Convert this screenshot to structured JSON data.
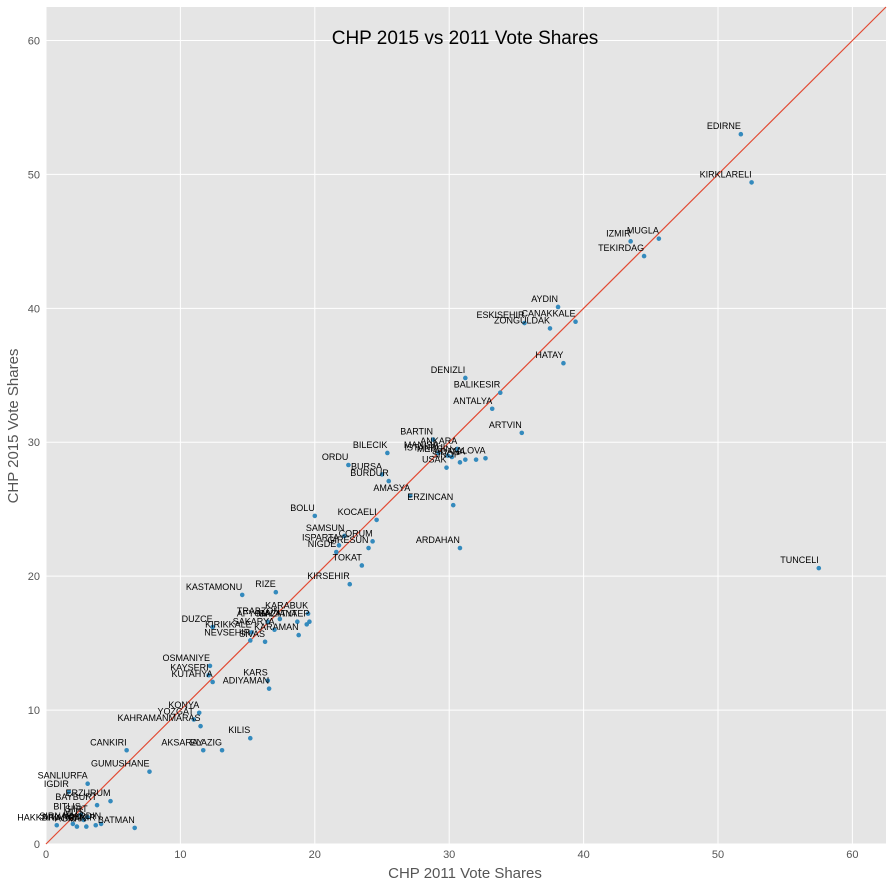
{
  "chart_data": {
    "type": "scatter",
    "title": "CHP 2015 vs 2011 Vote Shares",
    "xlabel": "CHP 2011 Vote Shares",
    "ylabel": "CHP 2015 Vote Shares",
    "xlim": [
      0,
      62.5
    ],
    "ylim": [
      0,
      62.5
    ],
    "xticks": [
      0,
      10,
      20,
      30,
      40,
      50,
      60
    ],
    "yticks": [
      0,
      10,
      20,
      30,
      40,
      50,
      60
    ],
    "grid": true,
    "colors": {
      "background": "#e5e5e5",
      "grid": "#ffffff",
      "point": "#348abd",
      "line": "#e24a33"
    },
    "reference_line": {
      "from": [
        0,
        0
      ],
      "to": [
        62.5,
        62.5
      ]
    },
    "points": [
      {
        "label": "EDIRNE",
        "x": 51.7,
        "y": 53.0
      },
      {
        "label": "KIRKLARELI",
        "x": 52.5,
        "y": 49.4
      },
      {
        "label": "MUGLA",
        "x": 45.6,
        "y": 45.2
      },
      {
        "label": "IZMIR",
        "x": 43.5,
        "y": 45.0
      },
      {
        "label": "TEKIRDAG",
        "x": 44.5,
        "y": 43.9
      },
      {
        "label": "AYDIN",
        "x": 38.1,
        "y": 40.1
      },
      {
        "label": "CANAKKALE",
        "x": 39.4,
        "y": 39.0
      },
      {
        "label": "ESKISEHIR",
        "x": 35.6,
        "y": 38.9
      },
      {
        "label": "ZONGULDAK",
        "x": 37.5,
        "y": 38.5
      },
      {
        "label": "HATAY",
        "x": 38.5,
        "y": 35.9
      },
      {
        "label": "DENIZLI",
        "x": 31.2,
        "y": 34.8
      },
      {
        "label": "BALIKESIR",
        "x": 33.8,
        "y": 33.7
      },
      {
        "label": "ANTALYA",
        "x": 33.2,
        "y": 32.5
      },
      {
        "label": "ARTVIN",
        "x": 35.4,
        "y": 30.7
      },
      {
        "label": "BARTIN",
        "x": 28.8,
        "y": 30.2
      },
      {
        "label": "ANKARA",
        "x": 30.6,
        "y": 29.5
      },
      {
        "label": "MANISA",
        "x": 29.2,
        "y": 29.2
      },
      {
        "label": "ISTANBUL",
        "x": 29.9,
        "y": 29.0
      },
      {
        "label": "MERSIN",
        "x": 30.2,
        "y": 28.9
      },
      {
        "label": "ADANA",
        "x": 31.2,
        "y": 28.7
      },
      {
        "label": "KIRIKKALE",
        "x": 32.0,
        "y": 28.7
      },
      {
        "label": "BILECIK",
        "x": 25.4,
        "y": 29.2
      },
      {
        "label": "ORDU",
        "x": 22.5,
        "y": 28.3
      },
      {
        "label": "SINOP",
        "x": 30.8,
        "y": 28.5
      },
      {
        "label": "USAK",
        "x": 29.8,
        "y": 28.1
      },
      {
        "label": "YALOVA",
        "x": 32.7,
        "y": 28.8
      },
      {
        "label": "BURSA",
        "x": 25.0,
        "y": 27.6
      },
      {
        "label": "BURDUR",
        "x": 25.5,
        "y": 27.1
      },
      {
        "label": "AMASYA",
        "x": 27.1,
        "y": 26.0
      },
      {
        "label": "ERZINCAN",
        "x": 30.3,
        "y": 25.3
      },
      {
        "label": "BOLU",
        "x": 20.0,
        "y": 24.5
      },
      {
        "label": "KOCAELI",
        "x": 24.6,
        "y": 24.2
      },
      {
        "label": "SAMSUN",
        "x": 22.2,
        "y": 23.0
      },
      {
        "label": "CORUM",
        "x": 24.3,
        "y": 22.6
      },
      {
        "label": "ISPARTA",
        "x": 21.8,
        "y": 22.3
      },
      {
        "label": "GIRESUN",
        "x": 24.0,
        "y": 22.1
      },
      {
        "label": "ARDAHAN",
        "x": 30.8,
        "y": 22.1
      },
      {
        "label": "NIGDE",
        "x": 21.6,
        "y": 21.8
      },
      {
        "label": "TOKAT",
        "x": 23.5,
        "y": 20.8
      },
      {
        "label": "TUNCELI",
        "x": 57.5,
        "y": 20.6
      },
      {
        "label": "KIRSEHIR",
        "x": 22.6,
        "y": 19.4
      },
      {
        "label": "KASTAMONU",
        "x": 14.6,
        "y": 18.6
      },
      {
        "label": "RIZE",
        "x": 17.1,
        "y": 18.8
      },
      {
        "label": "KARABUK",
        "x": 19.5,
        "y": 17.2
      },
      {
        "label": "TRABZON",
        "x": 17.4,
        "y": 16.8
      },
      {
        "label": "MALATYA",
        "x": 18.7,
        "y": 16.6
      },
      {
        "label": "AFYON",
        "x": 16.5,
        "y": 16.6
      },
      {
        "label": "KONYA_2",
        "x": 19.4,
        "y": 16.4
      },
      {
        "label": "SAKARYA",
        "x": 17.0,
        "y": 16.0
      },
      {
        "label": "GAZIANTEP",
        "x": 19.6,
        "y": 16.6
      },
      {
        "label": "DUZCE",
        "x": 12.4,
        "y": 16.2
      },
      {
        "label": "KIRIKKALE",
        "x": 15.3,
        "y": 15.8
      },
      {
        "label": "NEVSEHIR",
        "x": 15.2,
        "y": 15.2
      },
      {
        "label": "KARAMAN",
        "x": 18.8,
        "y": 15.6
      },
      {
        "label": "SIVAS",
        "x": 16.3,
        "y": 15.1
      },
      {
        "label": "OSMANIYE",
        "x": 12.2,
        "y": 13.3
      },
      {
        "label": "KAYSERI",
        "x": 12.1,
        "y": 12.6
      },
      {
        "label": "KUTAHYA",
        "x": 12.4,
        "y": 12.1
      },
      {
        "label": "KARS",
        "x": 16.5,
        "y": 12.2
      },
      {
        "label": "ADIYAMAN",
        "x": 16.6,
        "y": 11.6
      },
      {
        "label": "KONYA",
        "x": 11.4,
        "y": 9.8
      },
      {
        "label": "YOZGAT",
        "x": 11.0,
        "y": 9.3
      },
      {
        "label": "KAHRAMANMARAS",
        "x": 11.5,
        "y": 8.8
      },
      {
        "label": "KILIS",
        "x": 15.2,
        "y": 7.9
      },
      {
        "label": "AKSARAY",
        "x": 11.7,
        "y": 7.0
      },
      {
        "label": "ELAZIG",
        "x": 13.1,
        "y": 7.0
      },
      {
        "label": "CANKIRI",
        "x": 6.0,
        "y": 7.0
      },
      {
        "label": "GUMUSHANE",
        "x": 7.7,
        "y": 5.4
      },
      {
        "label": "SANLIURFA",
        "x": 3.1,
        "y": 4.5
      },
      {
        "label": "IGDIR",
        "x": 1.7,
        "y": 3.9
      },
      {
        "label": "ERZURUM",
        "x": 4.8,
        "y": 3.2
      },
      {
        "label": "BAYBURT",
        "x": 3.8,
        "y": 2.9
      },
      {
        "label": "BITLIS",
        "x": 2.6,
        "y": 2.2
      },
      {
        "label": "SIIRT",
        "x": 3.1,
        "y": 2.0
      },
      {
        "label": "MUS",
        "x": 2.8,
        "y": 1.8
      },
      {
        "label": "HAKKARI",
        "x": 0.8,
        "y": 1.4
      },
      {
        "label": "SIRNAK",
        "x": 2.0,
        "y": 1.5
      },
      {
        "label": "AGRI",
        "x": 2.3,
        "y": 1.3
      },
      {
        "label": "VAN",
        "x": 3.0,
        "y": 1.3
      },
      {
        "label": "DIYARBAKIR",
        "x": 3.7,
        "y": 1.4
      },
      {
        "label": "MARDIN",
        "x": 4.1,
        "y": 1.5
      },
      {
        "label": "BATMAN",
        "x": 6.6,
        "y": 1.2
      }
    ],
    "labels": [
      {
        "text": "EDIRNE",
        "x": 51.7,
        "y": 53.0
      },
      {
        "text": "KIRKLARELI",
        "x": 52.5,
        "y": 49.4
      },
      {
        "text": "MUGLA",
        "x": 45.6,
        "y": 45.2
      },
      {
        "text": "IZMIR",
        "x": 43.5,
        "y": 45.0
      },
      {
        "text": "TEKIRDAG",
        "x": 44.5,
        "y": 43.9
      },
      {
        "text": "AYDIN",
        "x": 38.1,
        "y": 40.1
      },
      {
        "text": "CANAKKALE",
        "x": 39.4,
        "y": 39.0
      },
      {
        "text": "ESKISEHIR",
        "x": 35.6,
        "y": 38.9
      },
      {
        "text": "ZONGULDAK",
        "x": 37.5,
        "y": 38.5
      },
      {
        "text": "HATAY",
        "x": 38.5,
        "y": 35.9
      },
      {
        "text": "DENIZLI",
        "x": 31.2,
        "y": 34.8
      },
      {
        "text": "BALIKESIR",
        "x": 33.8,
        "y": 33.7
      },
      {
        "text": "ANTALYA",
        "x": 33.2,
        "y": 32.5
      },
      {
        "text": "ARTVIN",
        "x": 35.4,
        "y": 30.7
      },
      {
        "text": "BARTIN",
        "x": 28.8,
        "y": 30.2
      },
      {
        "text": "ANKARA",
        "x": 30.6,
        "y": 29.5
      },
      {
        "text": "MANISA",
        "x": 29.2,
        "y": 29.2
      },
      {
        "text": "ISTANBUL",
        "x": 29.9,
        "y": 29.0
      },
      {
        "text": "MERSIN",
        "x": 30.2,
        "y": 28.9
      },
      {
        "text": "ADANA",
        "x": 31.2,
        "y": 28.7
      },
      {
        "text": "YALOVA",
        "x": 32.7,
        "y": 28.8
      },
      {
        "text": "BILECIK",
        "x": 25.4,
        "y": 29.2
      },
      {
        "text": "ORDU",
        "x": 22.5,
        "y": 28.3
      },
      {
        "text": "SINOP",
        "x": 30.8,
        "y": 28.5
      },
      {
        "text": "USAK",
        "x": 29.8,
        "y": 28.1
      },
      {
        "text": "BURSA",
        "x": 25.0,
        "y": 27.6
      },
      {
        "text": "BURDUR",
        "x": 25.5,
        "y": 27.1
      },
      {
        "text": "AMASYA",
        "x": 27.1,
        "y": 26.0
      },
      {
        "text": "ERZINCAN",
        "x": 30.3,
        "y": 25.3
      },
      {
        "text": "BOLU",
        "x": 20.0,
        "y": 24.5
      },
      {
        "text": "KOCAELI",
        "x": 24.6,
        "y": 24.2
      },
      {
        "text": "SAMSUN",
        "x": 22.2,
        "y": 23.0
      },
      {
        "text": "CORUM",
        "x": 24.3,
        "y": 22.6
      },
      {
        "text": "ISPARTA",
        "x": 21.8,
        "y": 22.3
      },
      {
        "text": "GIRESUN",
        "x": 24.0,
        "y": 22.1
      },
      {
        "text": "ARDAHAN",
        "x": 30.8,
        "y": 22.1
      },
      {
        "text": "NIGDE",
        "x": 21.6,
        "y": 21.8
      },
      {
        "text": "TOKAT",
        "x": 23.5,
        "y": 20.8
      },
      {
        "text": "TUNCELI",
        "x": 57.5,
        "y": 20.6
      },
      {
        "text": "KIRSEHIR",
        "x": 22.6,
        "y": 19.4
      },
      {
        "text": "KASTAMONU",
        "x": 14.6,
        "y": 18.6
      },
      {
        "text": "RIZE",
        "x": 17.1,
        "y": 18.8
      },
      {
        "text": "KARABUK",
        "x": 19.5,
        "y": 17.2
      },
      {
        "text": "TRABZON",
        "x": 17.4,
        "y": 16.8
      },
      {
        "text": "MALATYA",
        "x": 18.7,
        "y": 16.6
      },
      {
        "text": "AFYON",
        "x": 16.5,
        "y": 16.6
      },
      {
        "text": "GAZIANTEP",
        "x": 19.6,
        "y": 16.6
      },
      {
        "text": "SAKARYA",
        "x": 17.0,
        "y": 16.0
      },
      {
        "text": "DUZCE",
        "x": 12.4,
        "y": 16.2
      },
      {
        "text": "KIRIKKALE",
        "x": 15.3,
        "y": 15.8
      },
      {
        "text": "NEVSEHIR",
        "x": 15.2,
        "y": 15.2
      },
      {
        "text": "KARAMAN",
        "x": 18.8,
        "y": 15.6
      },
      {
        "text": "SIVAS",
        "x": 16.3,
        "y": 15.1
      },
      {
        "text": "OSMANIYE",
        "x": 12.2,
        "y": 13.3
      },
      {
        "text": "KAYSERI",
        "x": 12.1,
        "y": 12.6
      },
      {
        "text": "KUTAHYA",
        "x": 12.4,
        "y": 12.1
      },
      {
        "text": "KARS",
        "x": 16.5,
        "y": 12.2
      },
      {
        "text": "ADIYAMAN",
        "x": 16.6,
        "y": 11.6
      },
      {
        "text": "KONYA",
        "x": 11.4,
        "y": 9.8
      },
      {
        "text": "YOZGAT",
        "x": 11.0,
        "y": 9.3
      },
      {
        "text": "KAHRAMANMARAS",
        "x": 11.5,
        "y": 8.8
      },
      {
        "text": "KILIS",
        "x": 15.2,
        "y": 7.9
      },
      {
        "text": "AKSARAY",
        "x": 11.7,
        "y": 7.0
      },
      {
        "text": "ELAZIG",
        "x": 13.1,
        "y": 7.0
      },
      {
        "text": "CANKIRI",
        "x": 6.0,
        "y": 7.0
      },
      {
        "text": "GUMUSHANE",
        "x": 7.7,
        "y": 5.4
      },
      {
        "text": "SANLIURFA",
        "x": 3.1,
        "y": 4.5
      },
      {
        "text": "IGDIR",
        "x": 1.7,
        "y": 3.9
      },
      {
        "text": "ERZURUM",
        "x": 4.8,
        "y": 3.2
      },
      {
        "text": "BAYBURT",
        "x": 3.8,
        "y": 2.9
      },
      {
        "text": "BITLIS",
        "x": 2.6,
        "y": 2.2
      },
      {
        "text": "SIIRT",
        "x": 3.1,
        "y": 2.0
      },
      {
        "text": "MUS",
        "x": 2.8,
        "y": 1.8
      },
      {
        "text": "HAKKARI",
        "x": 0.8,
        "y": 1.4
      },
      {
        "text": "SIRNAK",
        "x": 2.0,
        "y": 1.5
      },
      {
        "text": "AGRI",
        "x": 2.3,
        "y": 1.3
      },
      {
        "text": "VAN",
        "x": 3.0,
        "y": 1.3
      },
      {
        "text": "DIYARBAKIR",
        "x": 3.7,
        "y": 1.4
      },
      {
        "text": "MARDIN",
        "x": 4.1,
        "y": 1.5
      },
      {
        "text": "BATMAN",
        "x": 6.6,
        "y": 1.2
      }
    ]
  }
}
